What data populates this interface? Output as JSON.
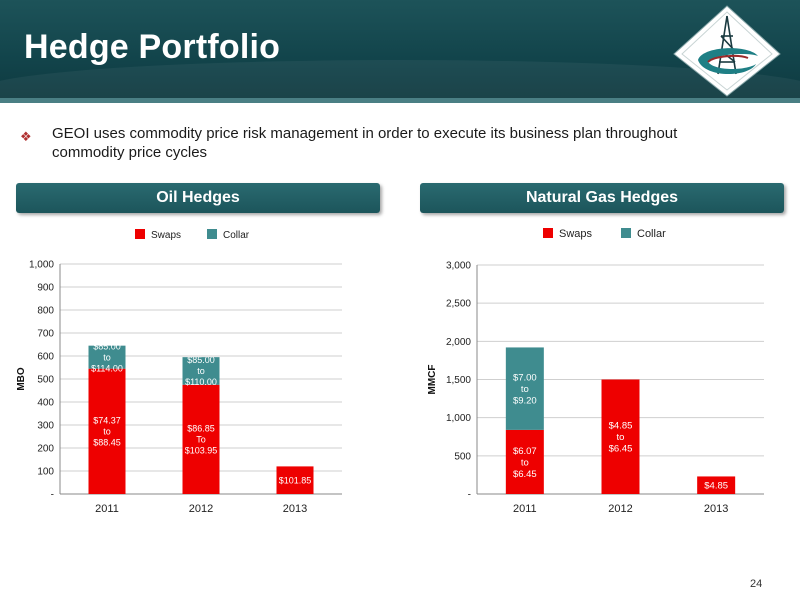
{
  "header": {
    "title": "Hedge Portfolio"
  },
  "bullet": {
    "text": "GEOI uses commodity price risk management in order to execute its business plan throughout commodity price cycles"
  },
  "oil_section": {
    "title": "Oil Hedges"
  },
  "gas_section": {
    "title": "Natural Gas Hedges"
  },
  "page_number": "24",
  "colors": {
    "swaps": "#ee0000",
    "collar": "#3f8c8f",
    "header_bg": "#12444b"
  },
  "chart_data": [
    {
      "type": "bar",
      "stacked": true,
      "title": "",
      "categories": [
        "2011",
        "2012",
        "2013"
      ],
      "ylabel": "MBO",
      "ylim": [
        0,
        1000
      ],
      "yticks": [
        0,
        100,
        200,
        300,
        400,
        500,
        600,
        700,
        800,
        900,
        1000
      ],
      "ytick_labels": [
        "-",
        "100",
        "200",
        "300",
        "400",
        "500",
        "600",
        "700",
        "800",
        "900",
        "1,000"
      ],
      "legend": [
        "Swaps",
        "Collar"
      ],
      "series": [
        {
          "name": "Swaps",
          "values": [
            545,
            475,
            120
          ],
          "labels": [
            "$74.37\nto\n$88.45",
            "$86.85\nTo\n$103.95",
            "$101.85"
          ]
        },
        {
          "name": "Collar",
          "values": [
            100,
            120,
            0
          ],
          "labels": [
            "$85.00\nto\n$114.00",
            "$85.00\nto\n$110.00",
            ""
          ]
        }
      ]
    },
    {
      "type": "bar",
      "stacked": true,
      "title": "",
      "categories": [
        "2011",
        "2012",
        "2013"
      ],
      "ylabel": "MMCF",
      "ylim": [
        0,
        3000
      ],
      "yticks": [
        0,
        500,
        1000,
        1500,
        2000,
        2500,
        3000
      ],
      "ytick_labels": [
        "-",
        "500",
        "1,000",
        "1,500",
        "2,000",
        "2,500",
        "3,000"
      ],
      "legend": [
        "Swaps",
        "Collar"
      ],
      "series": [
        {
          "name": "Swaps",
          "values": [
            840,
            1500,
            230
          ],
          "labels": [
            "$6.07\nto\n$6.45",
            "$4.85\nto\n$6.45",
            "$4.85"
          ]
        },
        {
          "name": "Collar",
          "values": [
            1080,
            0,
            0
          ],
          "labels": [
            "$7.00\nto\n$9.20",
            "",
            ""
          ]
        }
      ]
    }
  ]
}
